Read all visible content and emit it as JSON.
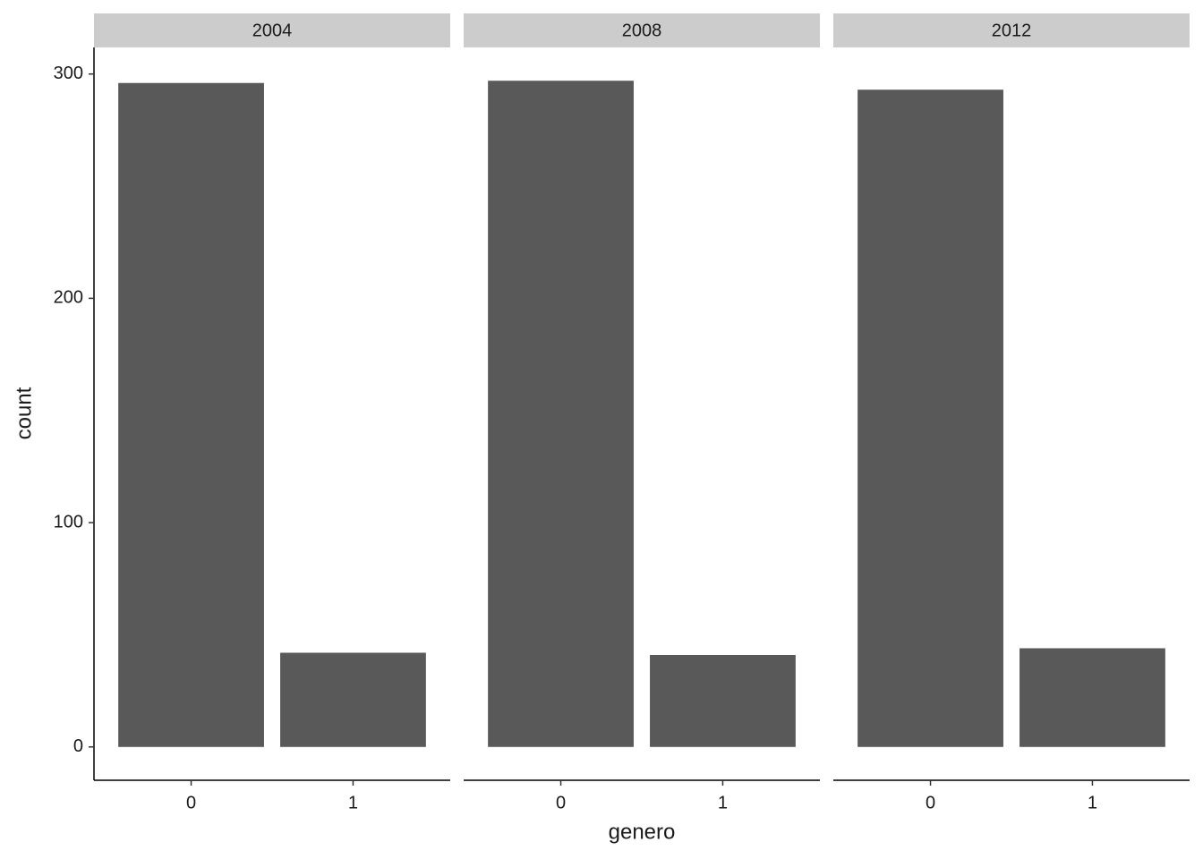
{
  "chart_data": {
    "type": "bar",
    "x_label": "genero",
    "y_label": "count",
    "color": "#595959",
    "strip_color": "#cccccc",
    "ylim": [
      -14.85,
      311.85
    ],
    "yticks": [
      0,
      100,
      200,
      300
    ],
    "facets": [
      {
        "title": "2004",
        "categories": [
          "0",
          "1"
        ],
        "values": [
          296,
          42
        ]
      },
      {
        "title": "2008",
        "categories": [
          "0",
          "1"
        ],
        "values": [
          297,
          41
        ]
      },
      {
        "title": "2012",
        "categories": [
          "0",
          "1"
        ],
        "values": [
          293,
          44
        ]
      }
    ]
  }
}
